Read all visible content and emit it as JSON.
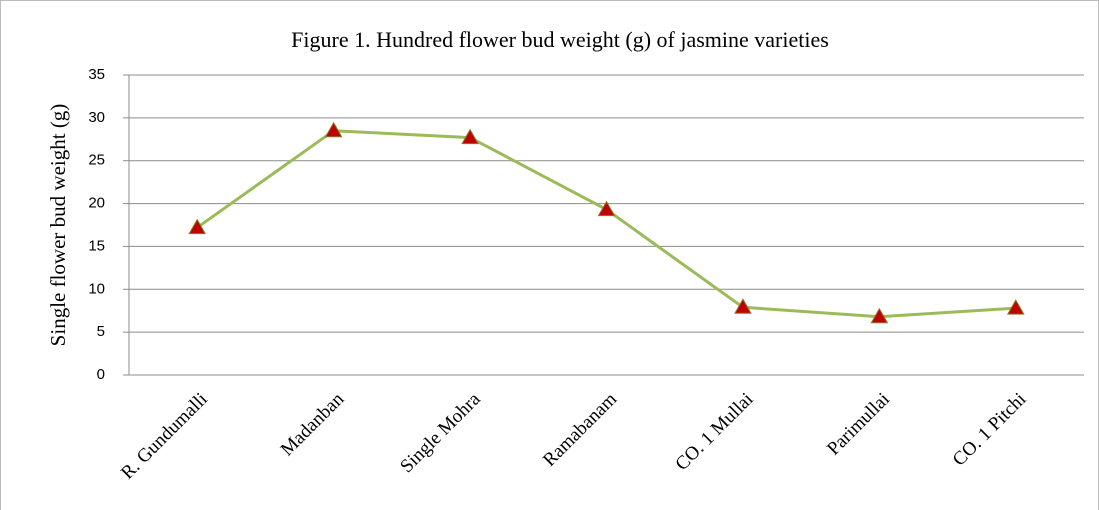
{
  "chart_data": {
    "type": "line",
    "title": "Figure 1. Hundred flower bud weight (g) of jasmine varieties",
    "y_label": "Single flower bud weight (g)",
    "categories": [
      "R. Gundumalli",
      "Madanban",
      "Single Mohra",
      "Ramabanam",
      "CO. 1 Mullai",
      "Parimullai",
      "CO. 1 Pitchi"
    ],
    "series": [
      {
        "name": "Single flower bud weight",
        "color": "#9bbb59",
        "marker_color": "#c00000",
        "values": [
          17.2,
          28.5,
          27.7,
          19.3,
          7.9,
          6.8,
          7.8
        ]
      }
    ],
    "ylim": [
      0,
      35
    ],
    "yticks": [
      0,
      5,
      10,
      15,
      20,
      25,
      30,
      35
    ],
    "grid": true
  }
}
